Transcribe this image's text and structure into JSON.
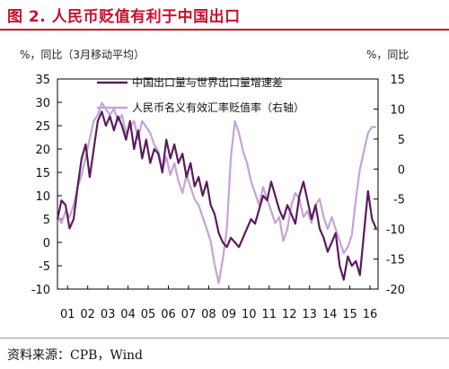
{
  "title": "图 2. 人民币贬值有利于中国出口",
  "source": "资料来源：CPB，Wind",
  "colors": {
    "title": "#c8102e",
    "series1": "#5b1a5e",
    "series2": "#c5a3d6"
  },
  "chart_data": {
    "type": "line",
    "left_unit_label": "%，同比（3月移动平均）",
    "right_unit_label": "%，同比",
    "x_labels": [
      "01",
      "02",
      "03",
      "04",
      "05",
      "06",
      "07",
      "08",
      "09",
      "10",
      "11",
      "12",
      "13",
      "14",
      "15",
      "16"
    ],
    "x_range": [
      2001.0,
      2016.9
    ],
    "y_left": {
      "range": [
        -10,
        35
      ],
      "ticks": [
        35,
        30,
        25,
        20,
        15,
        10,
        5,
        0,
        -5,
        -10
      ]
    },
    "y_right": {
      "range": [
        -20,
        15
      ],
      "ticks": [
        15,
        10,
        5,
        0,
        -5,
        -10,
        -15,
        -20
      ]
    },
    "grid": false,
    "legend_position": "top-center",
    "series": [
      {
        "name": "中国出口量与世界出口量增速差",
        "axis": "left",
        "color": "#5b1a5e",
        "points": [
          [
            2001.0,
            5
          ],
          [
            2001.2,
            9
          ],
          [
            2001.4,
            8
          ],
          [
            2001.6,
            3
          ],
          [
            2001.8,
            5
          ],
          [
            2002.0,
            12
          ],
          [
            2002.2,
            18
          ],
          [
            2002.4,
            21
          ],
          [
            2002.6,
            14
          ],
          [
            2002.8,
            20
          ],
          [
            2003.0,
            26
          ],
          [
            2003.2,
            28
          ],
          [
            2003.4,
            25
          ],
          [
            2003.6,
            27
          ],
          [
            2003.8,
            24
          ],
          [
            2004.0,
            27
          ],
          [
            2004.2,
            25
          ],
          [
            2004.4,
            22
          ],
          [
            2004.6,
            26
          ],
          [
            2004.8,
            20
          ],
          [
            2005.0,
            24
          ],
          [
            2005.2,
            18
          ],
          [
            2005.4,
            22
          ],
          [
            2005.6,
            17
          ],
          [
            2005.8,
            20
          ],
          [
            2006.0,
            19
          ],
          [
            2006.2,
            15
          ],
          [
            2006.4,
            22
          ],
          [
            2006.6,
            18
          ],
          [
            2006.8,
            21
          ],
          [
            2007.0,
            17
          ],
          [
            2007.2,
            19
          ],
          [
            2007.4,
            14
          ],
          [
            2007.6,
            17
          ],
          [
            2007.8,
            12
          ],
          [
            2008.0,
            14
          ],
          [
            2008.2,
            10
          ],
          [
            2008.4,
            13
          ],
          [
            2008.6,
            8
          ],
          [
            2008.8,
            6
          ],
          [
            2009.0,
            2
          ],
          [
            2009.2,
            0
          ],
          [
            2009.4,
            -1
          ],
          [
            2009.6,
            1
          ],
          [
            2009.8,
            0
          ],
          [
            2010.0,
            -1
          ],
          [
            2010.2,
            1
          ],
          [
            2010.4,
            3
          ],
          [
            2010.6,
            5
          ],
          [
            2010.8,
            4
          ],
          [
            2011.0,
            7
          ],
          [
            2011.2,
            10
          ],
          [
            2011.4,
            9
          ],
          [
            2011.6,
            13
          ],
          [
            2011.8,
            10
          ],
          [
            2012.0,
            7
          ],
          [
            2012.2,
            5
          ],
          [
            2012.4,
            8
          ],
          [
            2012.6,
            6
          ],
          [
            2012.8,
            4
          ],
          [
            2013.0,
            10
          ],
          [
            2013.2,
            13
          ],
          [
            2013.4,
            9
          ],
          [
            2013.6,
            5
          ],
          [
            2013.8,
            8
          ],
          [
            2014.0,
            3
          ],
          [
            2014.2,
            1
          ],
          [
            2014.4,
            -2
          ],
          [
            2014.6,
            0
          ],
          [
            2014.8,
            2
          ],
          [
            2015.0,
            -5
          ],
          [
            2015.2,
            -8
          ],
          [
            2015.4,
            -3
          ],
          [
            2015.6,
            -5
          ],
          [
            2015.8,
            -4
          ],
          [
            2016.0,
            -7
          ],
          [
            2016.2,
            2
          ],
          [
            2016.4,
            11
          ],
          [
            2016.6,
            5
          ],
          [
            2016.8,
            3
          ]
        ]
      },
      {
        "name": "人民币名义有效汇率贬值率（右轴）",
        "axis": "right",
        "color": "#c5a3d6",
        "points": [
          [
            2001.0,
            -8
          ],
          [
            2001.2,
            -9
          ],
          [
            2001.4,
            -7
          ],
          [
            2001.6,
            -8
          ],
          [
            2001.8,
            -6
          ],
          [
            2002.0,
            -3
          ],
          [
            2002.2,
            -1
          ],
          [
            2002.4,
            2
          ],
          [
            2002.6,
            5
          ],
          [
            2002.8,
            8
          ],
          [
            2003.0,
            9
          ],
          [
            2003.2,
            11
          ],
          [
            2003.4,
            10
          ],
          [
            2003.6,
            9
          ],
          [
            2003.8,
            10
          ],
          [
            2004.0,
            8
          ],
          [
            2004.2,
            9
          ],
          [
            2004.4,
            6
          ],
          [
            2004.6,
            7
          ],
          [
            2004.8,
            8
          ],
          [
            2005.0,
            5
          ],
          [
            2005.2,
            8
          ],
          [
            2005.4,
            7
          ],
          [
            2005.6,
            6
          ],
          [
            2005.8,
            4
          ],
          [
            2006.0,
            3
          ],
          [
            2006.2,
            0
          ],
          [
            2006.4,
            2
          ],
          [
            2006.6,
            -1
          ],
          [
            2006.8,
            1
          ],
          [
            2007.0,
            -2
          ],
          [
            2007.2,
            -4
          ],
          [
            2007.4,
            -1
          ],
          [
            2007.6,
            -3
          ],
          [
            2007.8,
            -5
          ],
          [
            2008.0,
            -6
          ],
          [
            2008.2,
            -8
          ],
          [
            2008.4,
            -10
          ],
          [
            2008.6,
            -12
          ],
          [
            2008.8,
            -16
          ],
          [
            2009.0,
            -19
          ],
          [
            2009.2,
            -15
          ],
          [
            2009.4,
            -10
          ],
          [
            2009.6,
            2
          ],
          [
            2009.8,
            8
          ],
          [
            2010.0,
            6
          ],
          [
            2010.2,
            3
          ],
          [
            2010.4,
            1
          ],
          [
            2010.6,
            -2
          ],
          [
            2010.8,
            -4
          ],
          [
            2011.0,
            -6
          ],
          [
            2011.2,
            -3
          ],
          [
            2011.4,
            -5
          ],
          [
            2011.6,
            -7
          ],
          [
            2011.8,
            -9
          ],
          [
            2012.0,
            -8
          ],
          [
            2012.2,
            -12
          ],
          [
            2012.4,
            -10
          ],
          [
            2012.6,
            -6
          ],
          [
            2012.8,
            -4
          ],
          [
            2013.0,
            -5
          ],
          [
            2013.2,
            -8
          ],
          [
            2013.4,
            -7
          ],
          [
            2013.6,
            -9
          ],
          [
            2013.8,
            -6
          ],
          [
            2014.0,
            -5
          ],
          [
            2014.2,
            -8
          ],
          [
            2014.4,
            -10
          ],
          [
            2014.6,
            -8
          ],
          [
            2014.8,
            -10
          ],
          [
            2015.0,
            -12
          ],
          [
            2015.2,
            -14
          ],
          [
            2015.4,
            -13
          ],
          [
            2015.6,
            -11
          ],
          [
            2015.8,
            -5
          ],
          [
            2016.0,
            0
          ],
          [
            2016.2,
            3
          ],
          [
            2016.4,
            6
          ],
          [
            2016.6,
            7
          ],
          [
            2016.8,
            7
          ]
        ]
      }
    ]
  }
}
